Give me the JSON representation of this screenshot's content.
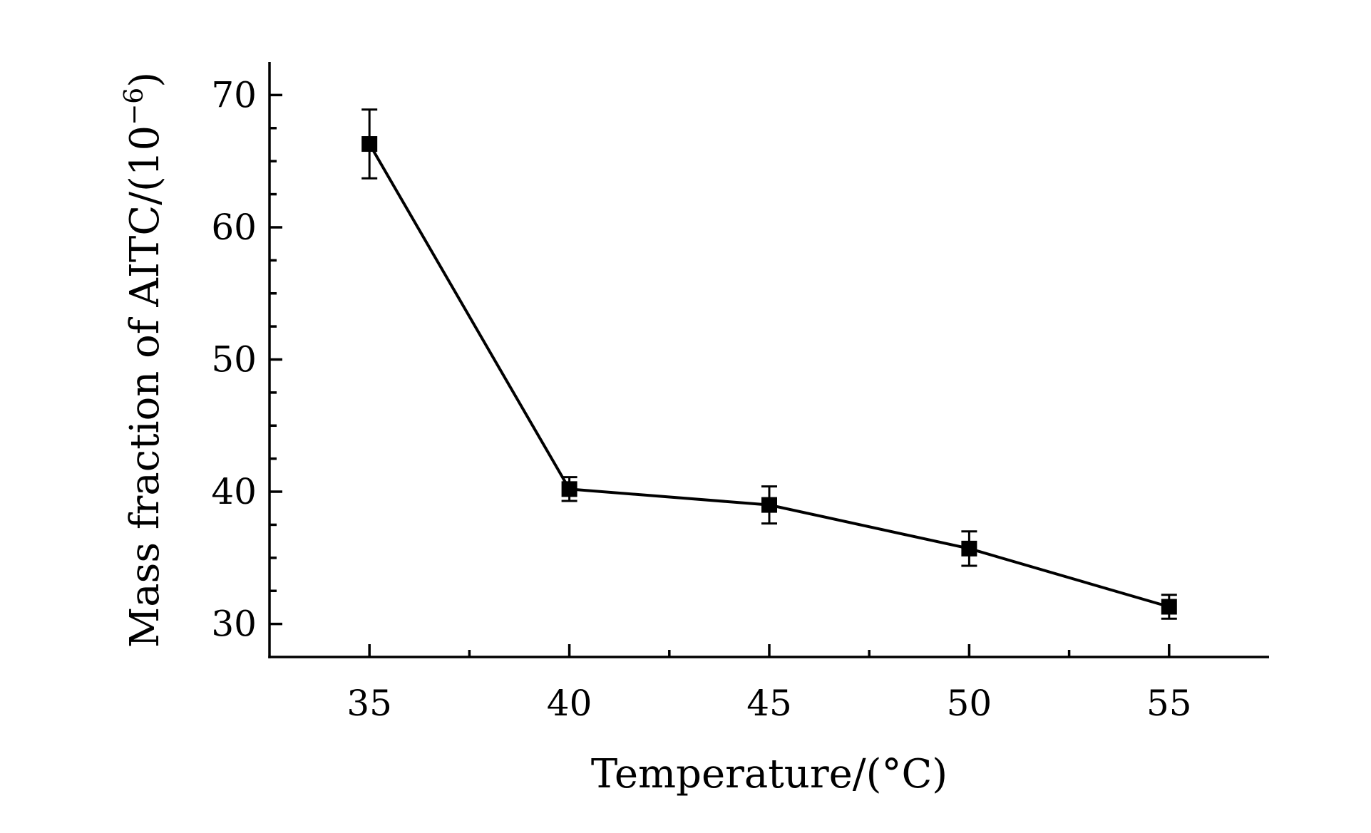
{
  "chart_data": {
    "type": "line",
    "title": "",
    "xlabel": "Temperature/(°C)",
    "ylabel_main": "Mass fraction of AITC/(10",
    "ylabel_sup": "−6",
    "ylabel_close": ")",
    "xlim": [
      32.5,
      57.5
    ],
    "ylim": [
      27.5,
      72.5
    ],
    "x_ticks": [
      35,
      40,
      45,
      50,
      55
    ],
    "x_minor_ticks": [
      37.5,
      42.5,
      47.5,
      52.5
    ],
    "y_ticks": [
      30,
      40,
      50,
      60,
      70
    ],
    "y_minor_ticks": [
      32.5,
      35,
      37.5,
      42.5,
      45,
      47.5,
      52.5,
      55,
      57.5,
      62.5,
      65,
      67.5
    ],
    "grid": false,
    "legend": "none",
    "marker": "square",
    "color": "#000000",
    "series": [
      {
        "x": [
          35,
          40,
          45,
          50,
          55
        ],
        "y": [
          66.3,
          40.2,
          39.0,
          35.7,
          31.3
        ],
        "error": [
          2.6,
          0.9,
          1.4,
          1.3,
          0.9
        ]
      }
    ]
  }
}
